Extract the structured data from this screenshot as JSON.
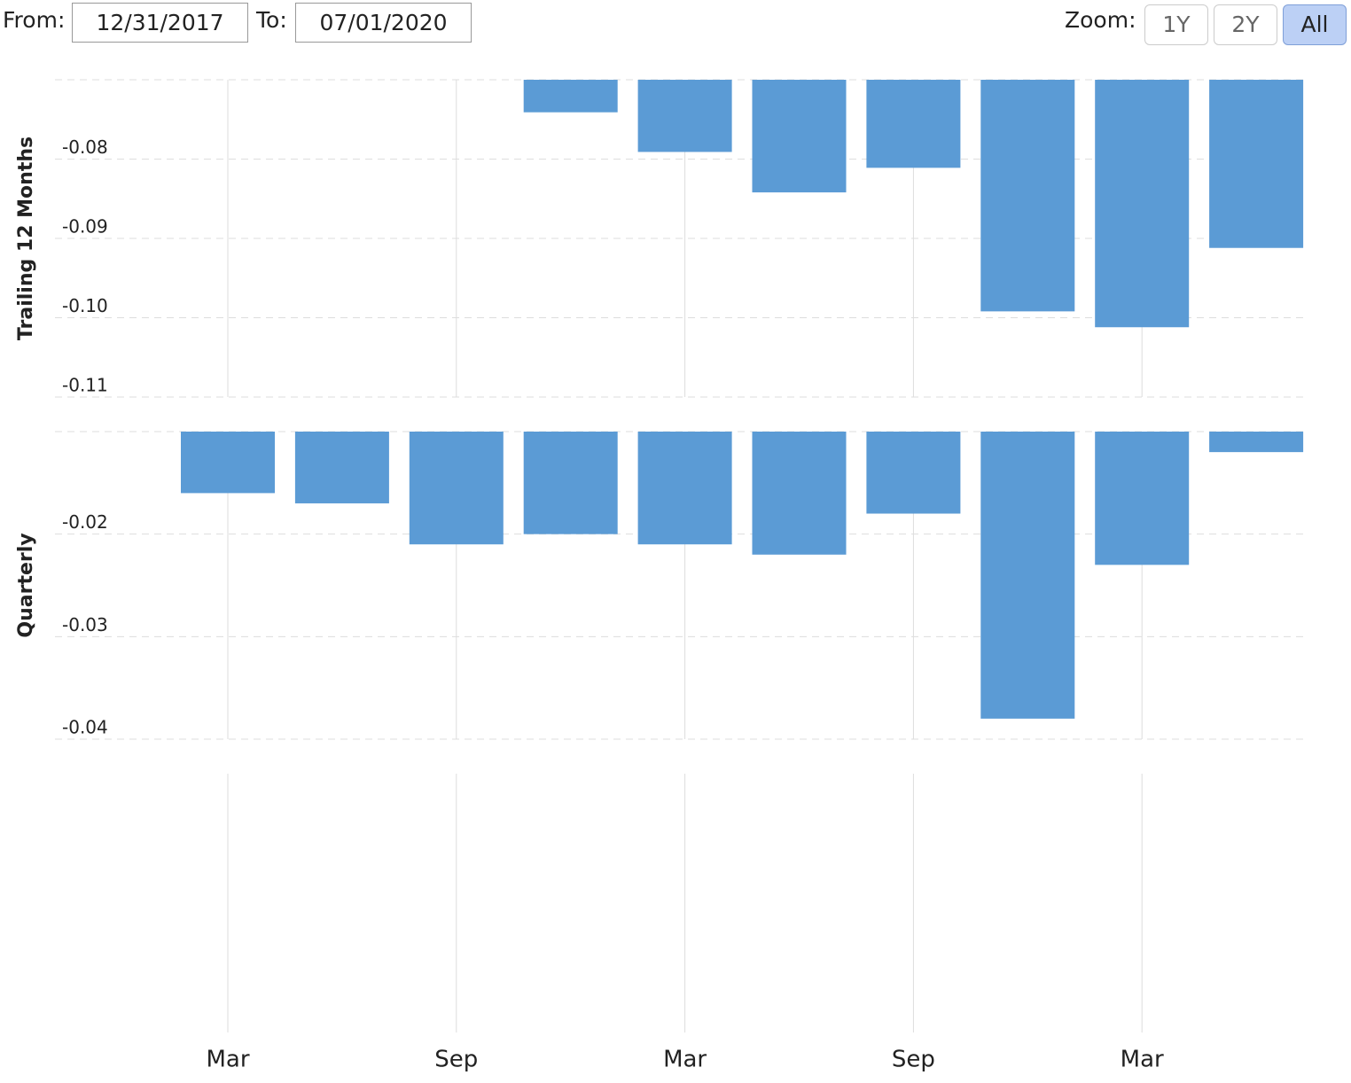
{
  "controls": {
    "from_label": "From:",
    "from": "12/31/2017",
    "to_label": "To:",
    "to": "07/01/2020",
    "zoom_label": "Zoom:",
    "zoom_buttons": [
      "1Y",
      "2Y",
      "All"
    ]
  },
  "chart_data": [
    {
      "type": "bar",
      "y_label": "Trailing 12 Months",
      "color": "#5b9bd5",
      "grid": true,
      "categories": [
        "Mar",
        null,
        "Sep",
        null,
        "Mar",
        null,
        "Sep",
        null,
        "Mar",
        null
      ],
      "values": [
        null,
        null,
        null,
        -0.0741,
        -0.0791,
        -0.0842,
        -0.0811,
        -0.0992,
        -0.1012,
        -0.0912
      ],
      "ylim": [
        -0.11,
        -0.07
      ],
      "yticks": [
        -0.08,
        -0.09,
        {
          "value": -0.1,
          "label": "-0.10"
        },
        -0.11
      ]
    },
    {
      "type": "bar",
      "y_label": "Quarterly",
      "color": "#5b9bd5",
      "grid": true,
      "values": [
        -0.016,
        -0.017,
        -0.021,
        -0.02,
        -0.021,
        -0.022,
        -0.018,
        -0.038,
        -0.023,
        -0.012
      ],
      "ylim": [
        -0.04,
        -0.01
      ],
      "yticks": [
        -0.02,
        -0.03,
        -0.04
      ]
    }
  ]
}
